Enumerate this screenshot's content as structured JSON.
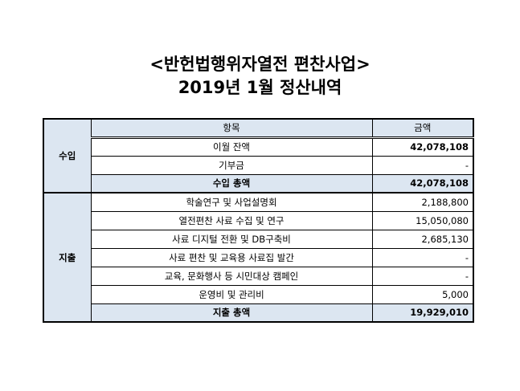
{
  "title": {
    "line1": "<반헌법행위자열전 편찬사업>",
    "line2": "2019년 1월 정산내역"
  },
  "table": {
    "headers": {
      "item": "항목",
      "amount": "금액"
    },
    "income": {
      "label": "수입",
      "rows": [
        {
          "item": "이월 잔액",
          "amount": "42,078,108"
        },
        {
          "item": "기부금",
          "amount": "-"
        }
      ],
      "total": {
        "item": "수입 총액",
        "amount": "42,078,108"
      }
    },
    "expense": {
      "label": "지출",
      "rows": [
        {
          "item": "학술연구 및 사업설명회",
          "amount": "2,188,800"
        },
        {
          "item": "열전편찬 사료 수집 및 연구",
          "amount": "15,050,080"
        },
        {
          "item": "사료 디지털 전환 및 DB구축비",
          "amount": "2,685,130"
        },
        {
          "item": "사료 편찬 및 교육용 사료집 발간",
          "amount": "-"
        },
        {
          "item": "교육, 문화행사 등 시민대상 캠페인",
          "amount": "-"
        },
        {
          "item": "운영비 및 관리비",
          "amount": "5,000"
        }
      ],
      "total": {
        "item": "지출 총액",
        "amount": "19,929,010"
      }
    }
  },
  "colors": {
    "header_bg": "#dce6f1"
  }
}
